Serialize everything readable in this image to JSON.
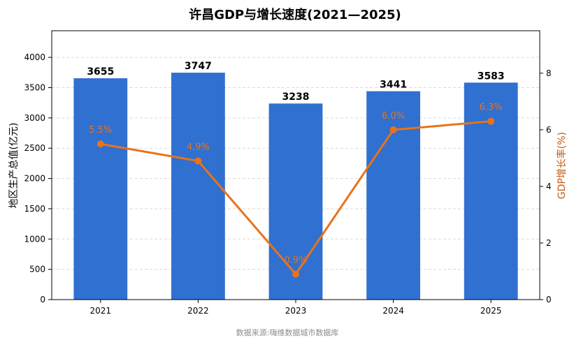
{
  "chart_data": {
    "type": "bar",
    "title": "许昌GDP与增长速度(2021—2025)",
    "categories": [
      "2021",
      "2022",
      "2023",
      "2024",
      "2025"
    ],
    "series": [
      {
        "type": "bar",
        "axis": "left",
        "color": "#3070d0",
        "values": [
          3655,
          3747,
          3238,
          3441,
          3583
        ],
        "labels": [
          "3655",
          "3747",
          "3238",
          "3441",
          "3583"
        ]
      },
      {
        "type": "line",
        "axis": "right",
        "color": "#e8731a",
        "values": [
          5.5,
          4.9,
          0.9,
          6.0,
          6.3
        ],
        "labels": [
          "5.5%",
          "4.9%",
          "0.9%",
          "6.0%",
          "6.3%"
        ]
      }
    ],
    "ylabel": "地区生产总值(亿元)",
    "ylabel_right": "GDP增长率(%)",
    "ylim": [
      0,
      4440
    ],
    "ylim_right": [
      0,
      9.5
    ],
    "yticks": [
      "0",
      "500",
      "1000",
      "1500",
      "2000",
      "2500",
      "3000",
      "3500",
      "4000"
    ],
    "yticks_right": [
      "0",
      "2",
      "4",
      "6",
      "8"
    ],
    "grid": "horizontal dashed",
    "source": "数据来源:嗨维数据城市数据库"
  }
}
